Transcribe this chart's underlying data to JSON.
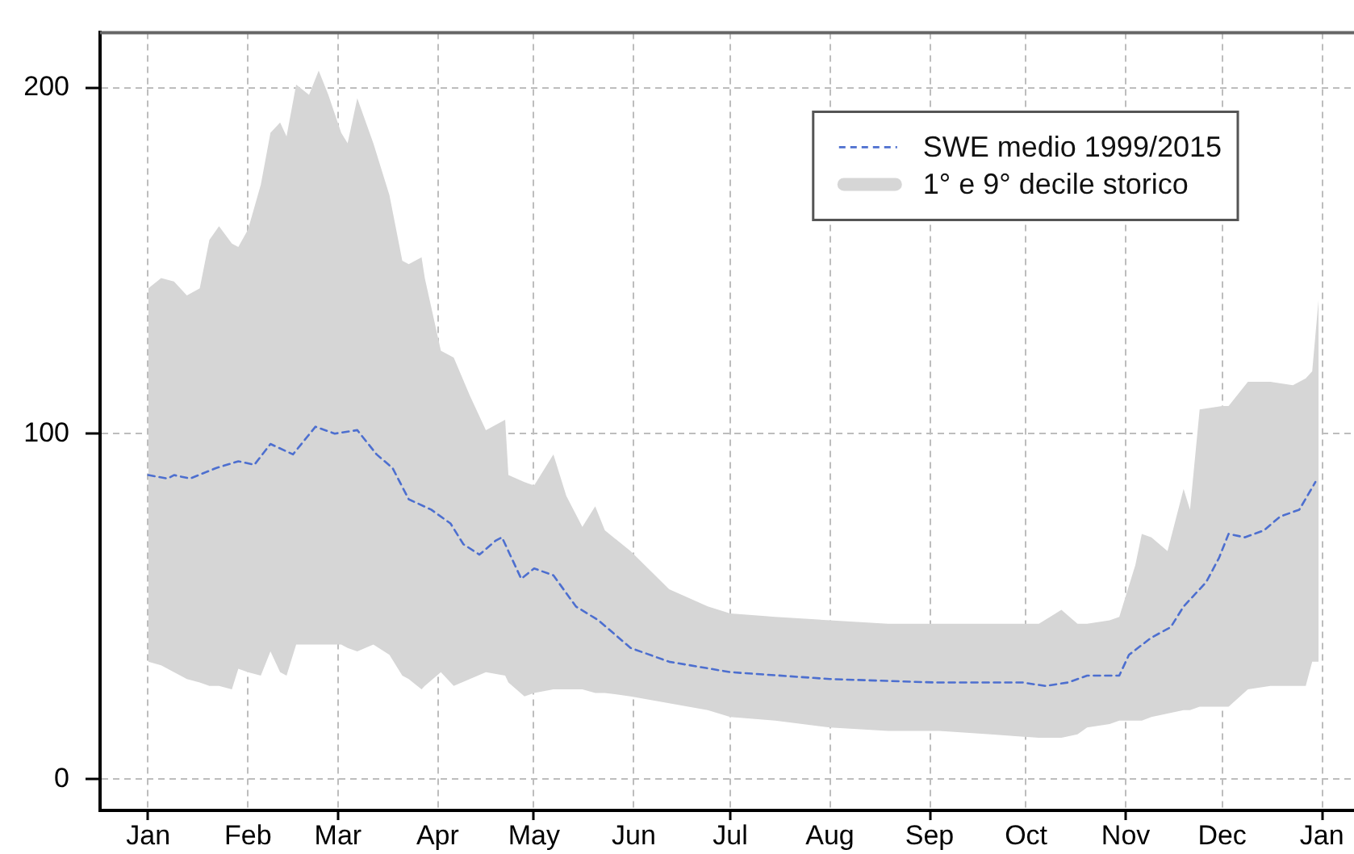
{
  "chart_data": {
    "type": "line",
    "legend": "top right",
    "grid": true,
    "xlim": [
      "2014-12-17",
      "2016-01-11"
    ],
    "xticks": [
      {
        "value": "2015-01-01",
        "label": "Jan"
      },
      {
        "value": "2015-02-01",
        "label": "Feb"
      },
      {
        "value": "2015-03-01",
        "label": "Mar"
      },
      {
        "value": "2015-04-01",
        "label": "Apr"
      },
      {
        "value": "2015-05-01",
        "label": "May"
      },
      {
        "value": "2015-06-01",
        "label": "Jun"
      },
      {
        "value": "2015-07-01",
        "label": "Jul"
      },
      {
        "value": "2015-08-01",
        "label": "Aug"
      },
      {
        "value": "2015-09-01",
        "label": "Sep"
      },
      {
        "value": "2015-10-01",
        "label": "Oct"
      },
      {
        "value": "2015-11-01",
        "label": "Nov"
      },
      {
        "value": "2015-12-01",
        "label": "Dec"
      },
      {
        "value": "2016-01-01",
        "label": "Jan"
      }
    ],
    "ylim": [
      -9,
      216
    ],
    "yticks": [
      0,
      100,
      200
    ],
    "series": [
      {
        "name": "SWE medio 1999/2015",
        "color": "#4d6fcf",
        "line_style": "dashed",
        "marker": "none",
        "x": [
          "2015-01-01",
          "2015-01-07",
          "2015-01-09",
          "2015-01-14",
          "2015-01-22",
          "2015-01-29",
          "2015-02-03",
          "2015-02-08",
          "2015-02-15",
          "2015-02-22",
          "2015-02-28",
          "2015-03-07",
          "2015-03-13",
          "2015-03-18",
          "2015-03-23",
          "2015-03-30",
          "2015-04-05",
          "2015-04-09",
          "2015-04-14",
          "2015-04-19",
          "2015-04-21",
          "2015-04-27",
          "2015-05-01",
          "2015-05-07",
          "2015-05-14",
          "2015-05-21",
          "2015-05-31",
          "2015-06-12",
          "2015-07-01",
          "2015-08-01",
          "2015-09-03",
          "2015-09-30",
          "2015-10-07",
          "2015-10-14",
          "2015-10-20",
          "2015-10-30",
          "2015-11-02",
          "2015-11-09",
          "2015-11-15",
          "2015-11-19",
          "2015-11-26",
          "2015-11-30",
          "2015-12-03",
          "2015-12-08",
          "2015-12-14",
          "2015-12-19",
          "2015-12-25",
          "2015-12-30"
        ],
        "values": [
          88,
          87,
          88,
          87,
          90,
          92,
          91,
          97,
          94,
          102,
          100,
          101,
          94,
          90,
          81,
          78,
          74,
          68,
          65,
          69,
          70,
          58,
          61,
          59,
          50,
          46,
          38,
          34,
          31,
          29,
          28,
          28,
          27,
          28,
          30,
          30,
          36,
          41,
          44,
          50,
          57,
          64,
          71,
          70,
          72,
          76,
          78,
          86
        ]
      },
      {
        "name": "1° e 9° decile storico",
        "type": "area",
        "color": "#d6d6d6",
        "x": [
          "2015-01-01",
          "2015-01-05",
          "2015-01-09",
          "2015-01-13",
          "2015-01-17",
          "2015-01-20",
          "2015-01-23",
          "2015-01-27",
          "2015-01-29",
          "2015-02-01",
          "2015-02-05",
          "2015-02-08",
          "2015-02-11",
          "2015-02-13",
          "2015-02-16",
          "2015-02-20",
          "2015-02-23",
          "2015-02-26",
          "2015-03-02",
          "2015-03-04",
          "2015-03-07",
          "2015-03-12",
          "2015-03-17",
          "2015-03-21",
          "2015-03-23",
          "2015-03-27",
          "2015-03-28",
          "2015-04-02",
          "2015-04-06",
          "2015-04-11",
          "2015-04-16",
          "2015-04-22",
          "2015-04-23",
          "2015-04-28",
          "2015-05-01",
          "2015-05-07",
          "2015-05-11",
          "2015-05-16",
          "2015-05-20",
          "2015-05-23",
          "2015-05-31",
          "2015-06-12",
          "2015-06-24",
          "2015-07-01",
          "2015-07-15",
          "2015-08-01",
          "2015-08-19",
          "2015-09-04",
          "2015-09-20",
          "2015-10-05",
          "2015-10-12",
          "2015-10-17",
          "2015-10-20",
          "2015-10-27",
          "2015-10-30",
          "2015-11-01",
          "2015-11-04",
          "2015-11-06",
          "2015-11-09",
          "2015-11-14",
          "2015-11-19",
          "2015-11-21",
          "2015-11-24",
          "2015-12-01",
          "2015-12-03",
          "2015-12-09",
          "2015-12-16",
          "2015-12-23",
          "2015-12-27",
          "2015-12-29",
          "2015-12-31"
        ],
        "values": [
          null,
          null,
          null,
          null,
          null,
          null,
          null,
          null,
          null,
          null,
          null,
          null,
          null,
          null,
          null,
          null,
          null,
          null,
          null,
          null,
          null,
          null,
          null,
          null,
          null,
          null,
          null,
          null,
          null,
          null,
          null,
          null,
          null,
          null,
          null,
          null,
          null,
          null,
          null,
          null,
          null,
          null,
          null,
          null,
          null,
          null,
          null,
          null,
          null,
          null,
          null,
          null,
          null,
          null,
          null,
          null,
          null,
          null,
          null,
          null,
          null,
          null,
          null,
          null,
          null,
          null,
          null,
          null,
          null,
          null,
          null
        ],
        "upper": [
          142,
          145,
          144,
          140,
          142,
          156,
          160,
          155,
          154,
          159,
          172,
          187,
          190,
          186,
          201,
          198,
          205,
          198,
          187,
          184,
          197,
          184,
          169,
          150,
          149,
          151,
          145,
          124,
          122,
          111,
          101,
          104,
          88,
          86,
          85,
          94,
          82,
          73,
          79,
          72,
          66,
          55,
          50,
          48,
          47,
          46,
          45,
          45,
          45,
          45,
          49,
          45,
          45,
          46,
          47,
          53,
          62,
          71,
          70,
          66,
          84,
          78,
          107,
          108,
          108,
          115,
          115,
          114,
          116,
          118,
          139
        ],
        "lower": [
          34,
          33,
          31,
          29,
          28,
          27,
          27,
          26,
          32,
          31,
          30,
          37,
          31,
          30,
          39,
          39,
          39,
          39,
          39,
          38,
          37,
          39,
          36,
          30,
          29,
          26,
          27,
          31,
          27,
          29,
          31,
          30,
          28,
          24,
          25,
          26,
          26,
          26,
          25,
          25,
          24,
          22,
          20,
          18,
          17,
          15,
          14,
          14,
          13,
          12,
          12,
          13,
          15,
          16,
          17,
          17,
          17,
          17,
          18,
          19,
          20,
          20,
          21,
          21,
          21,
          26,
          27,
          27,
          27,
          34,
          34
        ]
      }
    ]
  }
}
